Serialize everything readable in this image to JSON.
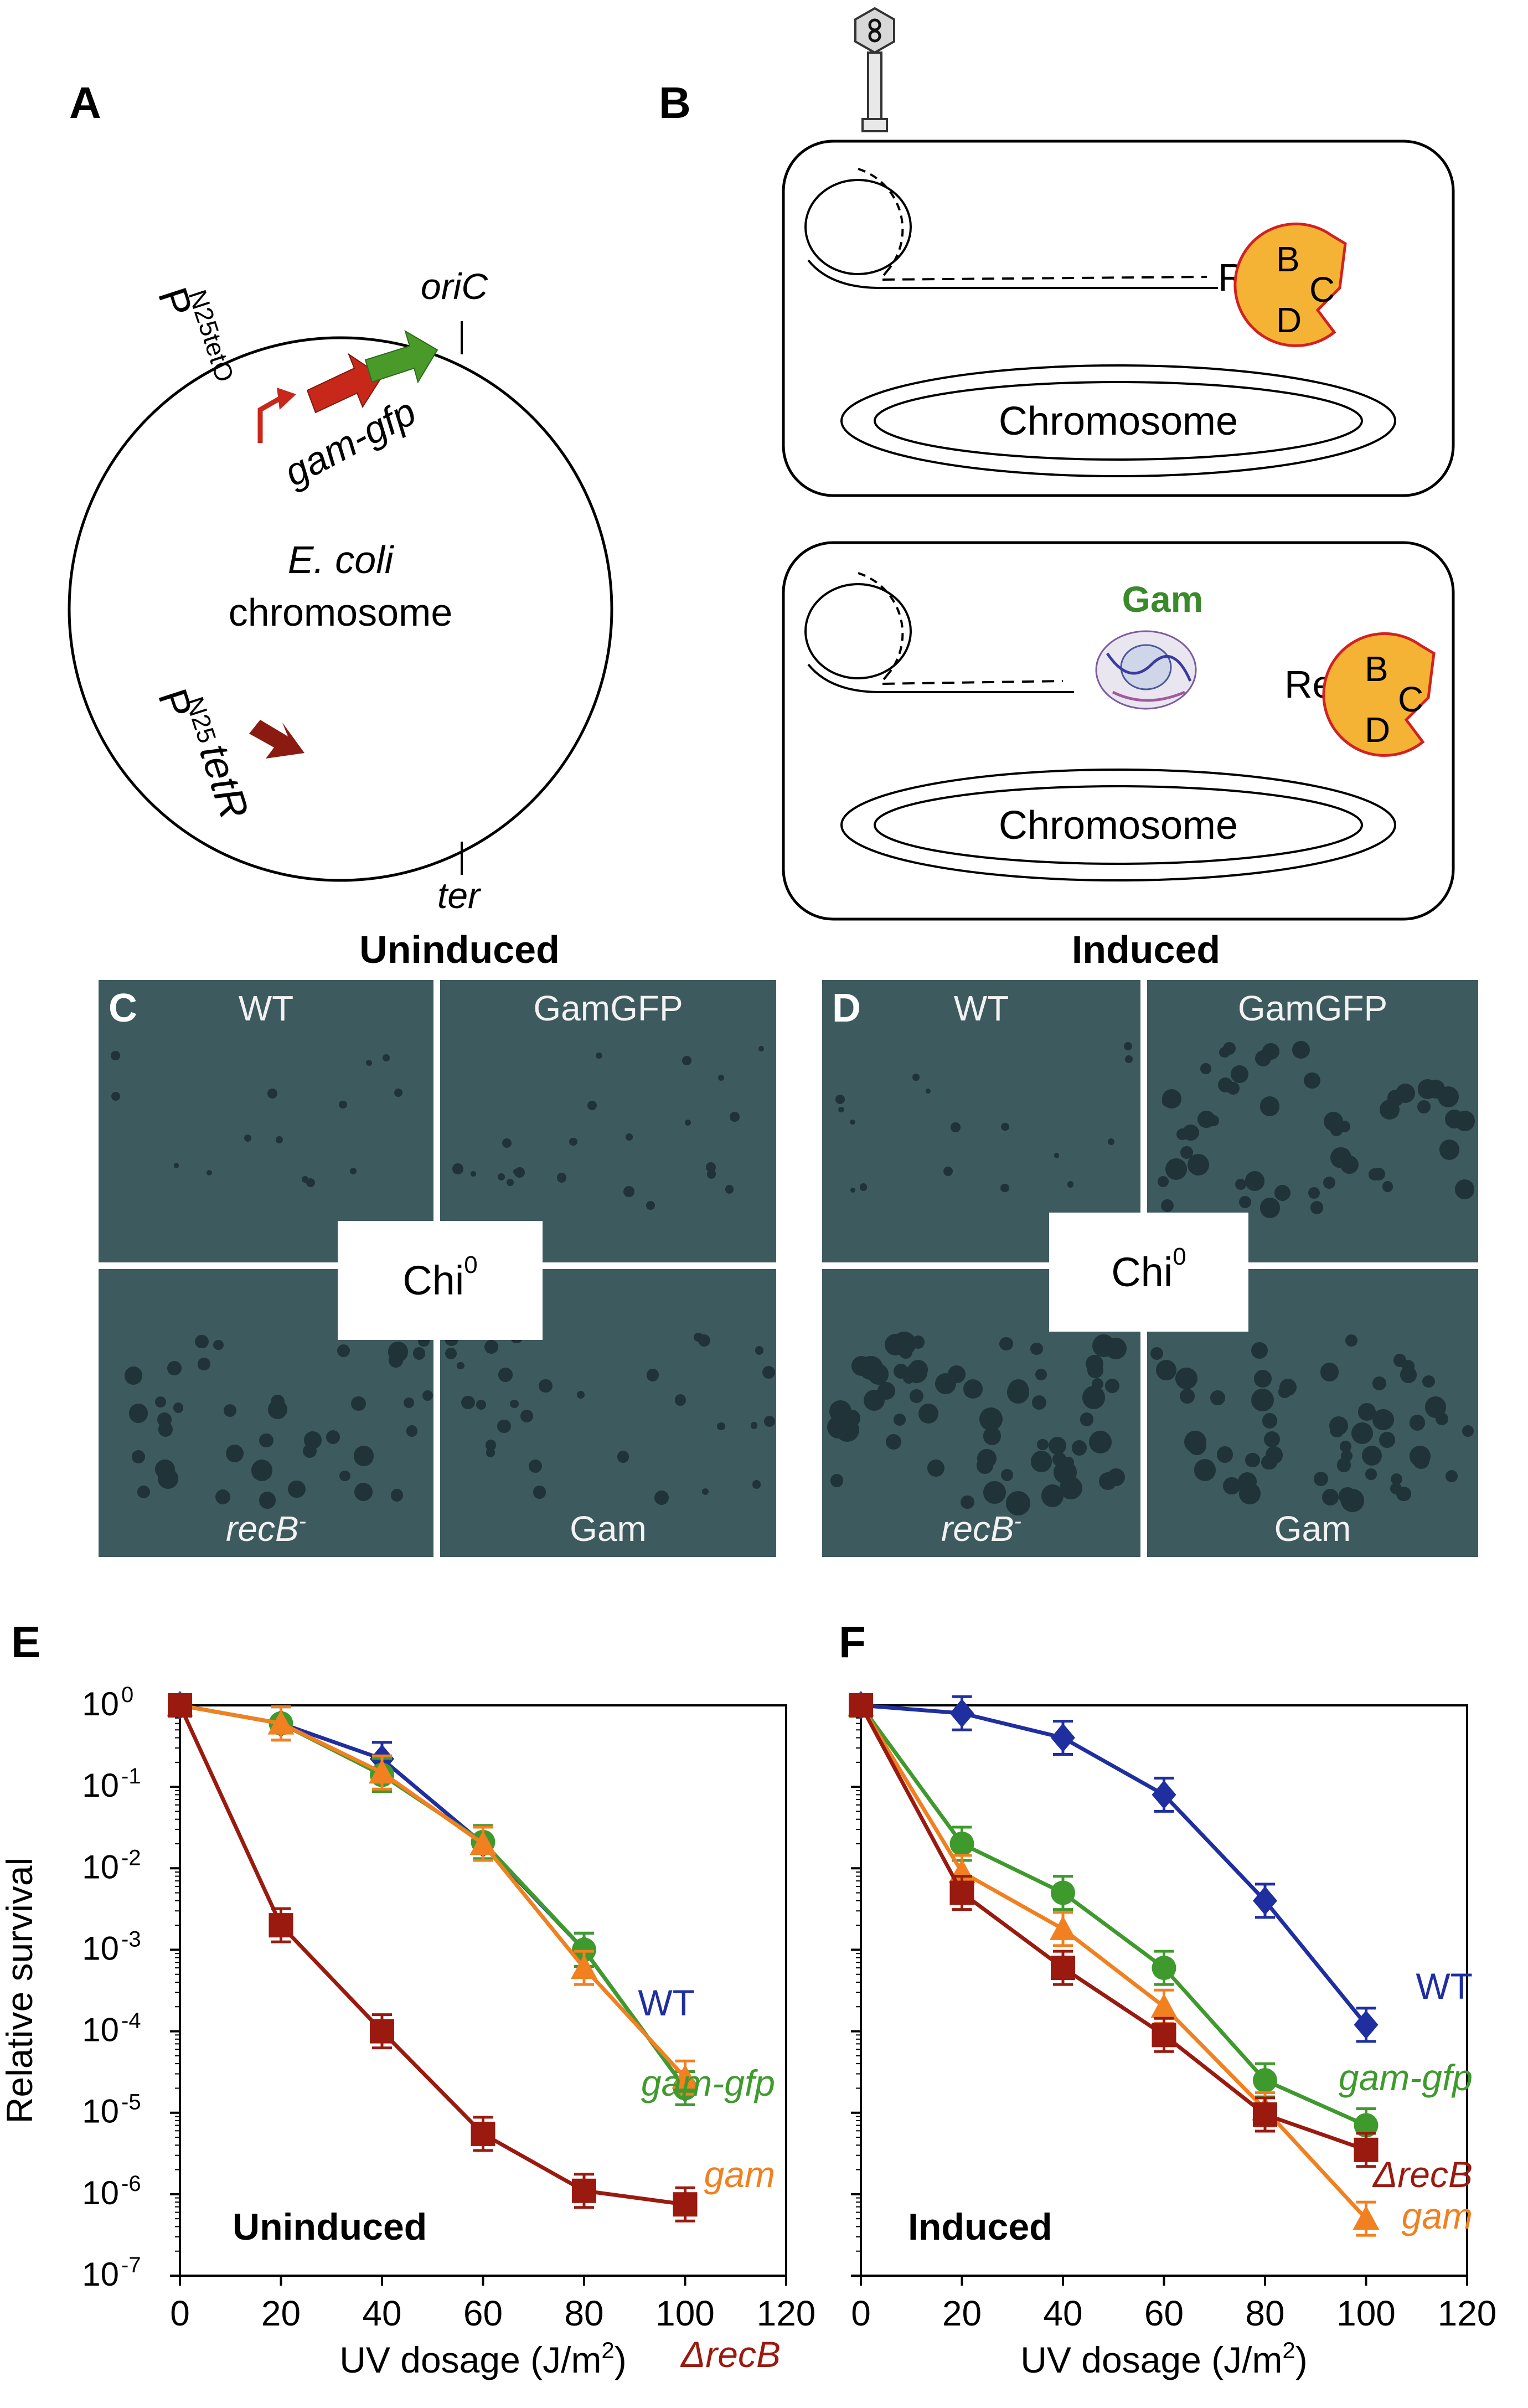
{
  "panels": {
    "A": {
      "letter": "A",
      "promoter_top": "P",
      "promoter_top_sub": "N25tetO",
      "gene_label": "gam-gfp",
      "oriC": "oriC",
      "ter": "ter",
      "chromosome_line1": "E. coli",
      "chromosome_line2": "chromosome",
      "promoter_bottom": "P",
      "promoter_bottom_sub": "N25",
      "promoter_bottom_gene": "tetR",
      "colors": {
        "gam": "#c8281a",
        "gfp": "#4a9a2a",
        "tetR": "#8b1a10"
      }
    },
    "B": {
      "letter": "B",
      "cell1": {
        "rec": "Rec",
        "b": "B",
        "c": "C",
        "d": "D",
        "chromosome": "Chromosome"
      },
      "cell2": {
        "gam": "Gam",
        "rec": "Rec",
        "b": "B",
        "c": "C",
        "d": "D",
        "chromosome": "Chromosome"
      },
      "colors": {
        "recbcd_fill": "#f5b335",
        "recbcd_stroke": "#d42020",
        "gam_text": "#3a8a2a"
      }
    },
    "C": {
      "letter": "C",
      "header": "Uninduced",
      "tiles": {
        "tl": "WT",
        "tr": "GamGFP",
        "bl": "recB",
        "bl_sup": "-",
        "br": "Gam"
      },
      "center": "Chi",
      "center_sup": "0"
    },
    "D": {
      "letter": "D",
      "header": "Induced",
      "tiles": {
        "tl": "WT",
        "tr": "GamGFP",
        "bl": "recB",
        "bl_sup": "-",
        "br": "Gam"
      },
      "center": "Chi",
      "center_sup": "0"
    },
    "E": {
      "letter": "E",
      "inside_label": "Uninduced"
    },
    "F": {
      "letter": "F",
      "inside_label": "Induced"
    }
  },
  "chart_data": [
    {
      "panel": "E",
      "type": "line",
      "ylabel": "Relative survival",
      "xlabel": "UV dosage (J/m",
      "xlabel_sup": "2",
      "xlabel_tail": ")",
      "xlim": [
        0,
        120
      ],
      "xticks": [
        "0",
        "20",
        "40",
        "60",
        "80",
        "100",
        "120"
      ],
      "ylim_log10": [
        -7,
        0
      ],
      "yscale": "log",
      "yticks": [
        {
          "base": "10",
          "exp": "0"
        },
        {
          "base": "10",
          "exp": "-1"
        },
        {
          "base": "10",
          "exp": "-2"
        },
        {
          "base": "10",
          "exp": "-3"
        },
        {
          "base": "10",
          "exp": "-4"
        },
        {
          "base": "10",
          "exp": "-5"
        },
        {
          "base": "10",
          "exp": "-6"
        },
        {
          "base": "10",
          "exp": "-7"
        }
      ],
      "x": [
        0,
        20,
        40,
        60,
        80,
        100
      ],
      "series": [
        {
          "name": "WT",
          "color": "#1f2fa0",
          "marker": "diamond",
          "values": [
            1.0,
            0.6,
            0.22,
            0.02,
            0.001,
            2e-05
          ]
        },
        {
          "name": "gam-gfp",
          "color": "#3f9a2e",
          "marker": "circle",
          "values": [
            1.0,
            0.6,
            0.14,
            0.021,
            0.001,
            2e-05
          ]
        },
        {
          "name": "gam",
          "color": "#f08020",
          "marker": "triangle",
          "values": [
            1.0,
            0.6,
            0.15,
            0.02,
            0.0006,
            2.7e-05
          ]
        },
        {
          "name": "ΔrecB",
          "color": "#9a1a10",
          "marker": "square",
          "values": [
            1.0,
            0.002,
            0.0001,
            5.5e-06,
            1.1e-06,
            7.5e-07
          ]
        }
      ],
      "legend_labels": [
        {
          "text": "WT",
          "italic": false
        },
        {
          "text": "gam-gfp",
          "italic": true
        },
        {
          "text": "gam",
          "italic": true
        },
        {
          "text": "ΔrecB",
          "italic": true
        }
      ],
      "grid": false
    },
    {
      "panel": "F",
      "type": "line",
      "xlabel": "UV dosage (J/m",
      "xlabel_sup": "2",
      "xlabel_tail": ")",
      "xlim": [
        0,
        120
      ],
      "xticks": [
        "0",
        "20",
        "40",
        "60",
        "80",
        "100",
        "120"
      ],
      "ylim_log10": [
        -7,
        0
      ],
      "yscale": "log",
      "x": [
        0,
        20,
        40,
        60,
        80,
        100
      ],
      "series": [
        {
          "name": "WT",
          "color": "#1f2fa0",
          "marker": "diamond",
          "values": [
            1.0,
            0.8,
            0.4,
            0.08,
            0.004,
            0.00012
          ]
        },
        {
          "name": "gam-gfp",
          "color": "#3f9a2e",
          "marker": "circle",
          "values": [
            1.0,
            0.02,
            0.005,
            0.0006,
            2.5e-05,
            7e-06
          ]
        },
        {
          "name": "gam",
          "color": "#f08020",
          "marker": "triangle",
          "values": [
            1.0,
            0.009,
            0.0018,
            0.0002,
            1.1e-05,
            5e-07
          ]
        },
        {
          "name": "ΔrecB",
          "color": "#9a1a10",
          "marker": "square",
          "values": [
            1.0,
            0.005,
            0.0006,
            9e-05,
            9.5e-06,
            3.5e-06
          ]
        }
      ],
      "legend_labels": [
        {
          "text": "WT",
          "italic": false
        },
        {
          "text": "gam-gfp",
          "italic": true
        },
        {
          "text": "ΔrecB",
          "italic": true
        },
        {
          "text": "gam",
          "italic": true
        }
      ],
      "grid": false
    }
  ]
}
